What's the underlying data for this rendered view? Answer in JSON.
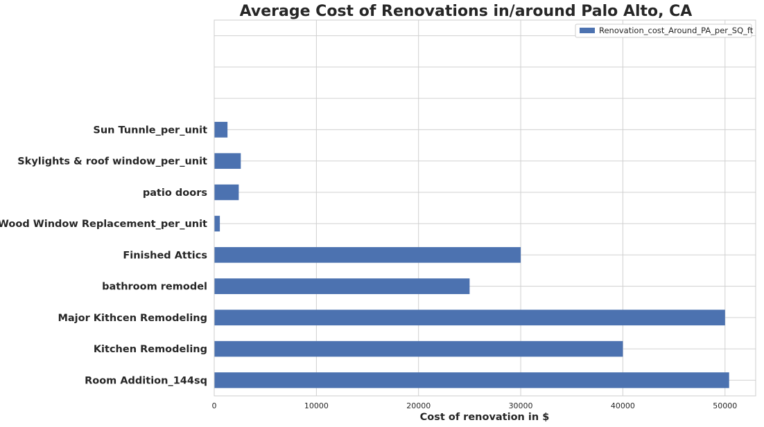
{
  "chart_data": {
    "type": "bar",
    "orientation": "horizontal",
    "title": "Average Cost of Renovations in/around Palo Alto, CA",
    "xlabel": "Cost of renovation in $",
    "ylabel": "",
    "categories": [
      "Room Addition_144sq",
      "Kitchen Remodeling",
      "Major Kithcen Remodeling",
      "bathroom remodel",
      "Finished Attics",
      "Wood Window Replacement_per_unit",
      "patio doors",
      "Skylights & roof window_per_unit",
      "Sun Tunnle_per_unit"
    ],
    "series": [
      {
        "name": "Renovation_cost_Around_PA_per_SQ_ft",
        "values": [
          50400,
          40000,
          50000,
          25000,
          30000,
          550,
          2400,
          2600,
          1300
        ]
      }
    ],
    "xticks": [
      0,
      10000,
      20000,
      30000,
      40000,
      50000
    ],
    "xlim": [
      0,
      53000
    ],
    "ylim": [
      -0.5,
      11.5
    ],
    "grid": true,
    "legend_position": "top-right",
    "bar_color": "#4c72b0"
  }
}
